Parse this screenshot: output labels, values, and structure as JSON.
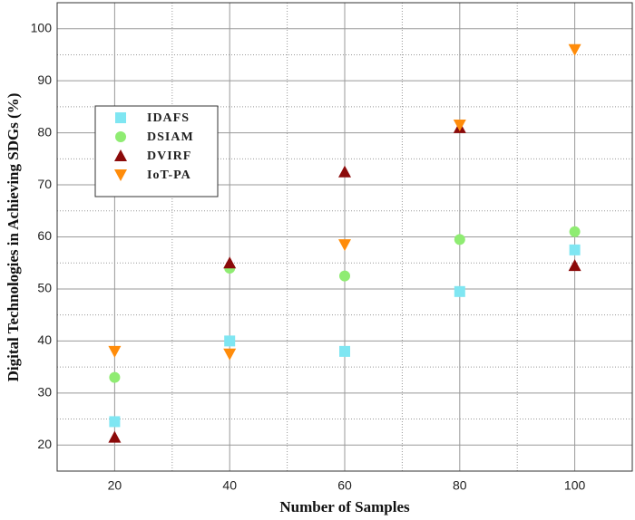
{
  "chart_data": {
    "type": "scatter",
    "xlabel": "Number of Samples",
    "ylabel": "Digital Technologies in Achieving SDGs (%)",
    "xlim": [
      10,
      110
    ],
    "xticks": [
      20,
      40,
      60,
      80,
      100
    ],
    "x_minor_ticks": [
      30,
      50,
      70,
      90
    ],
    "ylim": [
      15,
      105
    ],
    "yticks": [
      20,
      30,
      40,
      50,
      60,
      70,
      80,
      90,
      100
    ],
    "y_minor_ticks": [
      25,
      35,
      45,
      55,
      65,
      75,
      85,
      95
    ],
    "grid": true,
    "legend_loc": "upper left",
    "x": [
      20,
      40,
      60,
      80,
      100
    ],
    "series": [
      {
        "name": "IDAFS",
        "color": "#7fe6f2",
        "marker": "square",
        "values": [
          24.5,
          40,
          38,
          49.5,
          57.5
        ]
      },
      {
        "name": "DSIAM",
        "color": "#8fec72",
        "marker": "circle",
        "values": [
          33,
          54,
          52.5,
          59.5,
          61
        ]
      },
      {
        "name": "DVIRF",
        "color": "#8b0a0a",
        "marker": "triangle-up",
        "values": [
          21.5,
          55,
          72.5,
          81,
          54.5
        ]
      },
      {
        "name": "IoT-PA",
        "color": "#ff8c0a",
        "marker": "triangle-down",
        "values": [
          38,
          37.5,
          58.5,
          81.5,
          96
        ]
      }
    ]
  }
}
